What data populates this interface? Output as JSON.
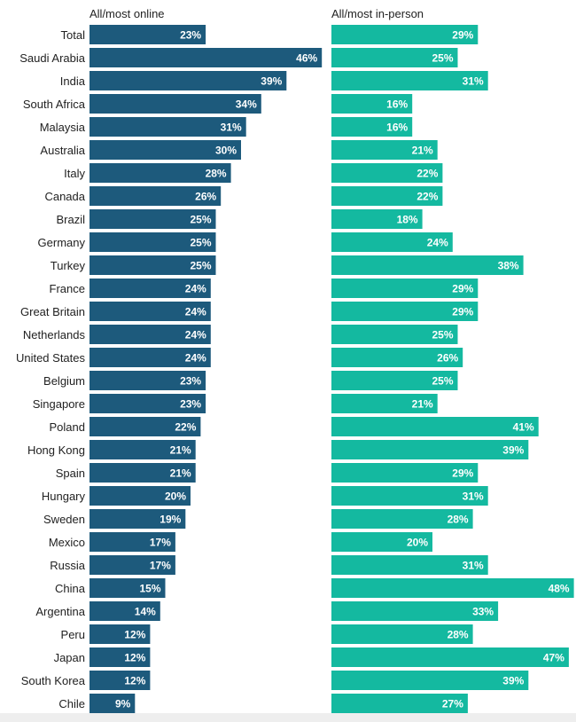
{
  "chart_data": {
    "type": "bar",
    "orientation": "horizontal",
    "layout": "two-panel",
    "categories": [
      "Total",
      "Saudi Arabia",
      "India",
      "South Africa",
      "Malaysia",
      "Australia",
      "Italy",
      "Canada",
      "Brazil",
      "Germany",
      "Turkey",
      "France",
      "Great Britain",
      "Netherlands",
      "United States",
      "Belgium",
      "Singapore",
      "Poland",
      "Hong Kong",
      "Spain",
      "Hungary",
      "Sweden",
      "Mexico",
      "Russia",
      "China",
      "Argentina",
      "Peru",
      "Japan",
      "South Korea",
      "Chile"
    ],
    "series": [
      {
        "name": "All/most online",
        "color": "#1d5a7c",
        "values": [
          23,
          46,
          39,
          34,
          31,
          30,
          28,
          26,
          25,
          25,
          25,
          24,
          24,
          24,
          24,
          23,
          23,
          22,
          21,
          21,
          20,
          19,
          17,
          17,
          15,
          14,
          12,
          12,
          12,
          9
        ]
      },
      {
        "name": "All/most in-person",
        "color": "#14b9a0",
        "values": [
          29,
          25,
          31,
          16,
          16,
          21,
          22,
          22,
          18,
          24,
          38,
          29,
          29,
          25,
          26,
          25,
          21,
          41,
          39,
          29,
          31,
          28,
          20,
          31,
          48,
          33,
          28,
          47,
          39,
          27
        ]
      }
    ],
    "value_suffix": "%",
    "title": "",
    "xlabel": "",
    "ylabel": "",
    "grid": false,
    "legend": "column headers above each panel"
  }
}
